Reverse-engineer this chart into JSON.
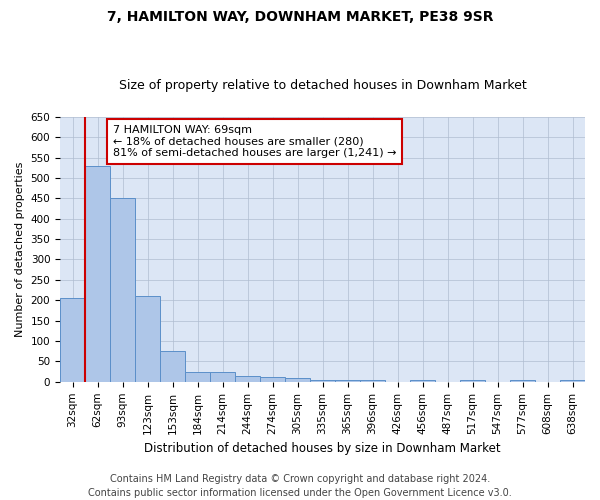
{
  "title": "7, HAMILTON WAY, DOWNHAM MARKET, PE38 9SR",
  "subtitle": "Size of property relative to detached houses in Downham Market",
  "xlabel": "Distribution of detached houses by size in Downham Market",
  "ylabel": "Number of detached properties",
  "categories": [
    "32sqm",
    "62sqm",
    "93sqm",
    "123sqm",
    "153sqm",
    "184sqm",
    "214sqm",
    "244sqm",
    "274sqm",
    "305sqm",
    "335sqm",
    "365sqm",
    "396sqm",
    "426sqm",
    "456sqm",
    "487sqm",
    "517sqm",
    "547sqm",
    "577sqm",
    "608sqm",
    "638sqm"
  ],
  "values": [
    205,
    530,
    450,
    210,
    75,
    25,
    25,
    15,
    12,
    10,
    5,
    5,
    5,
    0,
    5,
    0,
    5,
    0,
    5,
    0,
    5
  ],
  "bar_color": "#aec6e8",
  "bar_edge_color": "#5b8fc9",
  "annotation_text": "7 HAMILTON WAY: 69sqm\n← 18% of detached houses are smaller (280)\n81% of semi-detached houses are larger (1,241) →",
  "annotation_box_facecolor": "#ffffff",
  "annotation_box_edgecolor": "#cc0000",
  "vline_color": "#cc0000",
  "ylim": [
    0,
    650
  ],
  "yticks": [
    0,
    50,
    100,
    150,
    200,
    250,
    300,
    350,
    400,
    450,
    500,
    550,
    600,
    650
  ],
  "footer_line1": "Contains HM Land Registry data © Crown copyright and database right 2024.",
  "footer_line2": "Contains public sector information licensed under the Open Government Licence v3.0.",
  "bg_color": "#dce6f5",
  "fig_bg_color": "#ffffff",
  "title_fontsize": 10,
  "subtitle_fontsize": 9,
  "annotation_fontsize": 8,
  "footer_fontsize": 7,
  "ylabel_fontsize": 8,
  "xlabel_fontsize": 8.5,
  "tick_fontsize": 7.5
}
